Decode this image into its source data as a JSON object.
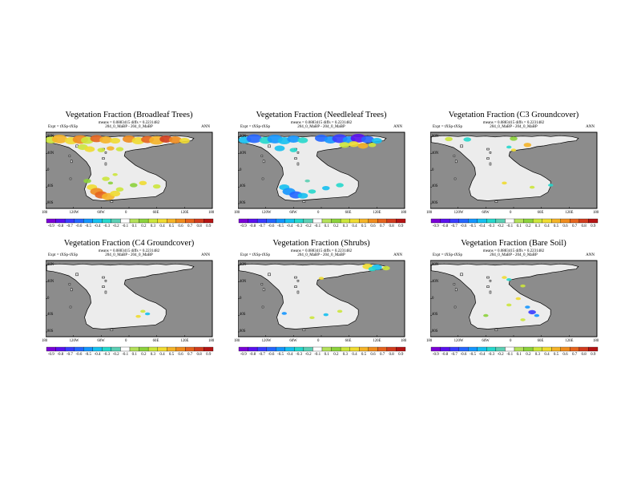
{
  "meta": {
    "expt": "Expt = tXSp-tXSp",
    "means_line": "means = 0.0883415 diffs = 0.2231482",
    "run_line": "204_0_MaBP - 204_0_MaBP",
    "season": "ANN"
  },
  "axes": {
    "x_ticks": [
      "180",
      "120W",
      "60W",
      "0",
      "60E",
      "120E",
      "180"
    ],
    "y_ticks": [
      "80N",
      "40N",
      "0",
      "40S",
      "80S"
    ]
  },
  "colorbar": {
    "levels": [
      "-0.9",
      "-0.8",
      "-0.7",
      "-0.6",
      "-0.5",
      "-0.4",
      "-0.3",
      "-0.2",
      "-0.1",
      "0.1",
      "0.2",
      "0.3",
      "0.4",
      "0.5",
      "0.6",
      "0.7",
      "0.8",
      "0.9"
    ],
    "colors": [
      "#7a00d6",
      "#5a10ee",
      "#3a3cff",
      "#2566ff",
      "#1496ff",
      "#16c0f0",
      "#26d8cc",
      "#5ccfb4",
      "#ffffff",
      "#b4e15a",
      "#8cd23c",
      "#cce63c",
      "#f0dc32",
      "#f5b428",
      "#f08c1e",
      "#e6641e",
      "#d23c1e",
      "#b41414"
    ]
  },
  "chart_data": [
    {
      "type": "heatmap",
      "title": "Vegetation Fraction (Broadleaf Trees)",
      "expt": "Expt = tXSp-tXSp",
      "means_line": "means = 0.0883415 diffs = 0.2231482",
      "run_line": "204_0_MaBP - 204_0_MaBP",
      "season": "ANN",
      "x_ticks": [
        "180",
        "120W",
        "60W",
        "0",
        "60E",
        "120E",
        "180"
      ],
      "y_ticks": [
        "80N",
        "40N",
        "0",
        "40S",
        "80S"
      ],
      "colorbar_levels": [
        "-0.9",
        "-0.8",
        "-0.7",
        "-0.6",
        "-0.5",
        "-0.4",
        "-0.3",
        "-0.2",
        "-0.1",
        "0.1",
        "0.2",
        "0.3",
        "0.4",
        "0.5",
        "0.6",
        "0.7",
        "0.8",
        "0.9"
      ],
      "spots": [
        [
          -168,
          72,
          5,
          0.3
        ],
        [
          -150,
          74,
          6,
          0.5
        ],
        [
          -125,
          70,
          5,
          0.4
        ],
        [
          -105,
          73,
          6,
          0.6
        ],
        [
          -90,
          71,
          5,
          0.3
        ],
        [
          -70,
          75,
          5,
          0.7
        ],
        [
          -50,
          72,
          5,
          0.5
        ],
        [
          -30,
          70,
          4,
          0.4
        ],
        [
          0,
          74,
          5,
          0.6
        ],
        [
          20,
          70,
          5,
          0.4
        ],
        [
          40,
          73,
          5,
          0.7
        ],
        [
          60,
          71,
          6,
          0.5
        ],
        [
          80,
          74,
          5,
          0.8
        ],
        [
          100,
          72,
          5,
          0.6
        ],
        [
          120,
          70,
          4,
          0.4
        ],
        [
          -100,
          55,
          4,
          0.3
        ],
        [
          -85,
          50,
          4,
          0.4
        ],
        [
          -60,
          48,
          3,
          0.3
        ],
        [
          -40,
          52,
          3,
          0.5
        ],
        [
          -20,
          50,
          3,
          0.3
        ],
        [
          -90,
          -25,
          3,
          0.2
        ],
        [
          -80,
          -40,
          4,
          0.4
        ],
        [
          -70,
          -50,
          5,
          0.6
        ],
        [
          -60,
          -58,
          5,
          0.7
        ],
        [
          -45,
          -62,
          5,
          0.5
        ],
        [
          -30,
          -55,
          4,
          0.4
        ],
        [
          -20,
          -45,
          3,
          0.3
        ],
        [
          10,
          -35,
          3,
          0.2
        ],
        [
          30,
          -30,
          3,
          0.4
        ],
        [
          60,
          -38,
          3,
          0.3
        ],
        [
          -50,
          -20,
          3,
          0.3
        ],
        [
          -40,
          -30,
          2,
          0.2
        ],
        [
          -30,
          -10,
          2,
          0.3
        ]
      ]
    },
    {
      "type": "heatmap",
      "title": "Vegetation Fraction (Needleleaf Trees)",
      "expt": "Expt = tXSp-tXSp",
      "means_line": "means = 0.0883415 diffs = 0.2231482",
      "run_line": "204_0_MaBP - 204_0_MaBP",
      "season": "ANN",
      "x_ticks": [
        "180",
        "120W",
        "60W",
        "0",
        "60E",
        "120E",
        "180"
      ],
      "y_ticks": [
        "80N",
        "40N",
        "0",
        "40S",
        "80S"
      ],
      "colorbar_levels": [
        "-0.9",
        "-0.8",
        "-0.7",
        "-0.6",
        "-0.5",
        "-0.4",
        "-0.3",
        "-0.2",
        "-0.1",
        "0.1",
        "0.2",
        "0.3",
        "0.4",
        "0.5",
        "0.6",
        "0.7",
        "0.8",
        "0.9"
      ],
      "spots": [
        [
          -165,
          72,
          5,
          -0.4
        ],
        [
          -145,
          75,
          6,
          -0.6
        ],
        [
          -120,
          71,
          5,
          -0.3
        ],
        [
          -100,
          74,
          6,
          -0.5
        ],
        [
          -80,
          70,
          5,
          -0.4
        ],
        [
          -60,
          74,
          5,
          -0.5
        ],
        [
          -40,
          71,
          4,
          -0.3
        ],
        [
          0,
          76,
          5,
          -0.6
        ],
        [
          20,
          72,
          5,
          -0.5
        ],
        [
          40,
          75,
          6,
          -0.7
        ],
        [
          60,
          72,
          5,
          -0.5
        ],
        [
          80,
          76,
          6,
          -0.8
        ],
        [
          100,
          73,
          5,
          -0.6
        ],
        [
          120,
          70,
          4,
          -0.4
        ],
        [
          50,
          60,
          4,
          0.3
        ],
        [
          70,
          62,
          4,
          0.4
        ],
        [
          90,
          58,
          4,
          0.5
        ],
        [
          110,
          60,
          3,
          0.3
        ],
        [
          -90,
          52,
          4,
          -0.4
        ],
        [
          -60,
          48,
          3,
          -0.3
        ],
        [
          -80,
          -40,
          4,
          -0.4
        ],
        [
          -70,
          -50,
          5,
          -0.5
        ],
        [
          -55,
          -58,
          5,
          -0.6
        ],
        [
          -40,
          -60,
          4,
          -0.4
        ],
        [
          -20,
          -50,
          3,
          -0.3
        ],
        [
          10,
          -42,
          3,
          -0.4
        ],
        [
          40,
          -35,
          3,
          -0.3
        ],
        [
          -30,
          -25,
          2,
          -0.2
        ]
      ]
    },
    {
      "type": "heatmap",
      "title": "Vegetation Fraction (C3 Groundcover)",
      "expt": "Expt = tXSp-tXSp",
      "means_line": "means = 0.0883415 diffs = 0.2231482",
      "run_line": "204_0_MaBP - 204_0_MaBP",
      "season": "ANN",
      "x_ticks": [
        "180",
        "120W",
        "60W",
        "0",
        "60E",
        "120E",
        "180"
      ],
      "y_ticks": [
        "80N",
        "40N",
        "0",
        "40S",
        "80S"
      ],
      "colorbar_levels": [
        "-0.9",
        "-0.8",
        "-0.7",
        "-0.6",
        "-0.5",
        "-0.4",
        "-0.3",
        "-0.2",
        "-0.1",
        "0.1",
        "0.2",
        "0.3",
        "0.4",
        "0.5",
        "0.6",
        "0.7",
        "0.8",
        "0.9"
      ],
      "spots": [
        [
          -140,
          74,
          3,
          0.3
        ],
        [
          -100,
          73,
          3,
          -0.3
        ],
        [
          0,
          75,
          3,
          0.2
        ],
        [
          0,
          48,
          2,
          0.4
        ],
        [
          -10,
          55,
          2,
          -0.3
        ],
        [
          30,
          60,
          3,
          0.5
        ],
        [
          -20,
          -30,
          2,
          0.4
        ],
        [
          40,
          -40,
          2,
          0.3
        ],
        [
          80,
          -35,
          2,
          -0.3
        ]
      ]
    },
    {
      "type": "heatmap",
      "title": "Vegetation Fraction (C4 Groundcover)",
      "expt": "Expt = tXSp-tXSp",
      "means_line": "means = 0.0883415 diffs = 0.2231482",
      "run_line": "204_0_MaBP - 204_0_MaBP",
      "season": "ANN",
      "x_ticks": [
        "180",
        "120W",
        "60W",
        "0",
        "60E",
        "120E",
        "180"
      ],
      "y_ticks": [
        "80N",
        "40N",
        "0",
        "40S",
        "80S"
      ],
      "colorbar_levels": [
        "-0.9",
        "-0.8",
        "-0.7",
        "-0.6",
        "-0.5",
        "-0.4",
        "-0.3",
        "-0.2",
        "-0.1",
        "0.1",
        "0.2",
        "0.3",
        "0.4",
        "0.5",
        "0.6",
        "0.7",
        "0.8",
        "0.9"
      ],
      "spots": [
        [
          30,
          -30,
          2,
          0.3
        ],
        [
          40,
          -36,
          2,
          -0.4
        ],
        [
          20,
          -42,
          2,
          0.4
        ]
      ]
    },
    {
      "type": "heatmap",
      "title": "Vegetation Fraction (Shrubs)",
      "expt": "Expt = tXSp-tXSp",
      "means_line": "means = 0.0883415 diffs = 0.2231482",
      "run_line": "204_0_MaBP - 204_0_MaBP",
      "season": "ANN",
      "x_ticks": [
        "180",
        "120W",
        "60W",
        "0",
        "60E",
        "120E",
        "180"
      ],
      "y_ticks": [
        "80N",
        "40N",
        "0",
        "40S",
        "80S"
      ],
      "colorbar_levels": [
        "-0.9",
        "-0.8",
        "-0.7",
        "-0.6",
        "-0.5",
        "-0.4",
        "-0.3",
        "-0.2",
        "-0.1",
        "0.1",
        "0.2",
        "0.3",
        "0.4",
        "0.5",
        "0.6",
        "0.7",
        "0.8",
        "0.9"
      ],
      "spots": [
        [
          100,
          76,
          4,
          0.4
        ],
        [
          120,
          74,
          4,
          -0.4
        ],
        [
          140,
          72,
          3,
          0.3
        ],
        [
          110,
          70,
          3,
          -0.3
        ],
        [
          0,
          48,
          2,
          0.4
        ],
        [
          -80,
          -35,
          2,
          -0.5
        ],
        [
          -20,
          -45,
          2,
          0.3
        ],
        [
          10,
          -38,
          2,
          -0.4
        ],
        [
          40,
          -30,
          2,
          0.3
        ]
      ]
    },
    {
      "type": "heatmap",
      "title": "Vegetation Fraction (Bare Soil)",
      "expt": "Expt = tXSp-tXSp",
      "means_line": "means = 0.0883415 diffs = 0.2231482",
      "run_line": "204_0_MaBP - 204_0_MaBP",
      "season": "ANN",
      "x_ticks": [
        "180",
        "120W",
        "60W",
        "0",
        "60E",
        "120E",
        "180"
      ],
      "y_ticks": [
        "80N",
        "40N",
        "0",
        "40S",
        "80S"
      ],
      "colorbar_levels": [
        "-0.9",
        "-0.8",
        "-0.7",
        "-0.6",
        "-0.5",
        "-0.4",
        "-0.3",
        "-0.2",
        "-0.1",
        "0.1",
        "0.2",
        "0.3",
        "0.4",
        "0.5",
        "0.6",
        "0.7",
        "0.8",
        "0.9"
      ],
      "spots": [
        [
          -20,
          50,
          2,
          0.4
        ],
        [
          -10,
          45,
          2,
          -0.3
        ],
        [
          20,
          30,
          2,
          0.3
        ],
        [
          10,
          0,
          2,
          0.4
        ],
        [
          -10,
          -15,
          2,
          0.3
        ],
        [
          30,
          -20,
          2,
          -0.5
        ],
        [
          40,
          -32,
          3,
          -0.7
        ],
        [
          50,
          -40,
          2,
          -0.5
        ],
        [
          -60,
          -40,
          2,
          0.2
        ],
        [
          20,
          -50,
          2,
          0.3
        ]
      ]
    }
  ]
}
